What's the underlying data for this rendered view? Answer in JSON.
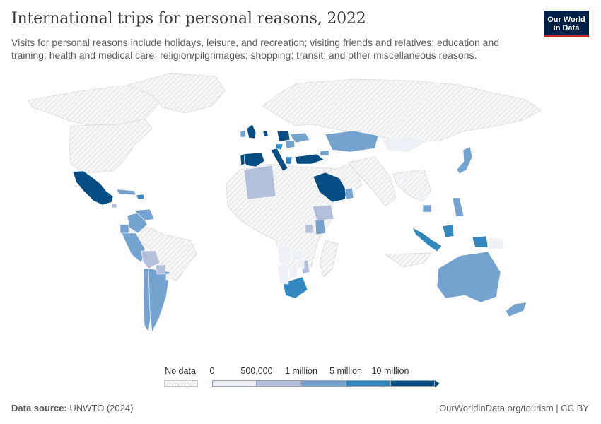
{
  "header": {
    "title": "International trips for personal reasons, 2022",
    "subtitle": "Visits for personal reasons include holidays, leisure, and recreation; visiting friends and relatives; education and training; health and medical care; religion/pilgrimages; shopping; transit; and other miscellaneous reasons."
  },
  "logo": {
    "line1": "Our World",
    "line2": "in Data"
  },
  "colors": {
    "bin0": "#eef0f6",
    "bin1": "#b4c0db",
    "bin2": "#76a2cf",
    "bin3": "#3187be",
    "bin4": "#064d84",
    "nodata_fill": "#f3f3f3",
    "nodata_hatch": "#d9d9d9",
    "border": "#c8c8c8"
  },
  "legend": {
    "nodata_label": "No data",
    "ticks": [
      "0",
      "500,000",
      "1 million",
      "5 million",
      "10 million"
    ]
  },
  "footer": {
    "source_prefix": "Data source:",
    "source": "UNWTO (2024)",
    "link": "OurWorldinData.org/tourism | CC BY"
  },
  "chart_data": {
    "type": "choropleth",
    "metric": "International trips for personal reasons",
    "year": "2022",
    "bins": [
      "0",
      "500,000",
      "1 million",
      "5 million",
      "10 million"
    ],
    "countries": [
      {
        "name": "Mexico",
        "bin": 4
      },
      {
        "name": "Saudi Arabia",
        "bin": 4
      },
      {
        "name": "United Kingdom",
        "bin": 4
      },
      {
        "name": "Spain",
        "bin": 4
      },
      {
        "name": "Italy",
        "bin": 4
      },
      {
        "name": "Turkey",
        "bin": 4
      },
      {
        "name": "Poland",
        "bin": 4
      },
      {
        "name": "Portugal",
        "bin": 4
      },
      {
        "name": "Netherlands",
        "bin": 4
      },
      {
        "name": "Greece",
        "bin": 3
      },
      {
        "name": "Croatia",
        "bin": 3
      },
      {
        "name": "Dominican Republic",
        "bin": 3
      },
      {
        "name": "South Africa",
        "bin": 3
      },
      {
        "name": "Indonesia",
        "bin": 3
      },
      {
        "name": "Ireland",
        "bin": 2
      },
      {
        "name": "Ukraine",
        "bin": 2
      },
      {
        "name": "Romania",
        "bin": 2
      },
      {
        "name": "Kazakhstan",
        "bin": 2
      },
      {
        "name": "Georgia",
        "bin": 2
      },
      {
        "name": "Cuba",
        "bin": 2
      },
      {
        "name": "Colombia",
        "bin": 2
      },
      {
        "name": "Venezuela",
        "bin": 2
      },
      {
        "name": "Ecuador",
        "bin": 2
      },
      {
        "name": "Peru",
        "bin": 2
      },
      {
        "name": "Chile",
        "bin": 2
      },
      {
        "name": "Argentina",
        "bin": 2
      },
      {
        "name": "Kenya",
        "bin": 2
      },
      {
        "name": "Oman",
        "bin": 2
      },
      {
        "name": "Japan",
        "bin": 2
      },
      {
        "name": "Philippines",
        "bin": 2
      },
      {
        "name": "Cambodia",
        "bin": 2
      },
      {
        "name": "Australia",
        "bin": 2
      },
      {
        "name": "New Zealand",
        "bin": 2
      },
      {
        "name": "Algeria",
        "bin": 1
      },
      {
        "name": "Ethiopia",
        "bin": 1
      },
      {
        "name": "Uganda",
        "bin": 1
      },
      {
        "name": "Bolivia",
        "bin": 1
      },
      {
        "name": "Paraguay",
        "bin": 1
      },
      {
        "name": "Costa Rica",
        "bin": 1
      },
      {
        "name": "Mozambique",
        "bin": 1
      },
      {
        "name": "Mongolia",
        "bin": 0
      },
      {
        "name": "Angola",
        "bin": 0
      },
      {
        "name": "Zambia",
        "bin": 0
      },
      {
        "name": "Botswana",
        "bin": 0
      },
      {
        "name": "Namibia",
        "bin": 0
      },
      {
        "name": "Zimbabwe",
        "bin": 0
      },
      {
        "name": "Papua New Guinea",
        "bin": 0
      },
      {
        "name": "Laos",
        "bin": 0
      },
      {
        "name": "Bhutan",
        "bin": 0
      },
      {
        "name": "Uruguay",
        "bin": 0
      }
    ]
  }
}
